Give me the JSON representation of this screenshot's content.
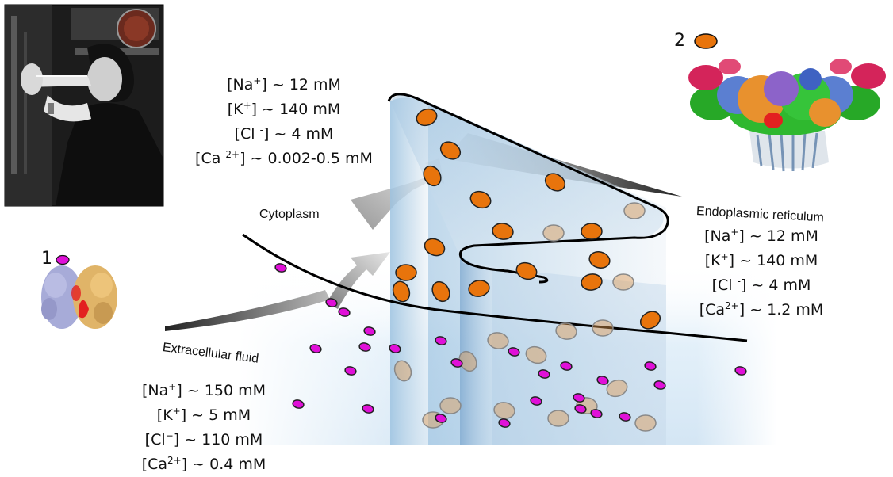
{
  "markers": {
    "one": "1",
    "two": "2"
  },
  "regions": {
    "cytoplasm": "Cytoplasm",
    "er": "Endoplasmic reticulum",
    "extracellular": "Extracellular fluid"
  },
  "cytoplasm_conc": {
    "na": {
      "pre": "[Na",
      "sup": "+",
      "post": "] ~ 12 mM"
    },
    "k": {
      "pre": "[K",
      "sup": "+",
      "post": "] ~ 140 mM"
    },
    "cl": {
      "pre": "[Cl ",
      "sup": "-",
      "post": "] ~ 4 mM"
    },
    "ca": {
      "pre": "[Ca ",
      "sup": "2+",
      "post": "] ~ 0.002-0.5 mM"
    }
  },
  "er_conc": {
    "na": {
      "pre": "[Na",
      "sup": "+",
      "post": "] ~ 12 mM"
    },
    "k": {
      "pre": "[K",
      "sup": "+",
      "post": "] ~ 140 mM"
    },
    "cl": {
      "pre": "[Cl ",
      "sup": "-",
      "post": "] ~ 4 mM"
    },
    "ca": {
      "pre": "[Ca",
      "sup": "2+",
      "post": "] ~ 1.2 mM"
    }
  },
  "extracellular_conc": {
    "na": {
      "pre": "[Na",
      "sup": "+",
      "post": "] ~ 150 mM"
    },
    "k": {
      "pre": "[K",
      "sup": "+",
      "post": "] ~ 5 mM"
    },
    "cl": {
      "pre": "[Cl",
      "sup": "−",
      "post": "] ~ 110 mM"
    },
    "ca": {
      "pre": "[Ca",
      "sup": "2+",
      "post": "] ~ 0.4 mM"
    }
  },
  "colors": {
    "orange_ion": "#e8740c",
    "magenta_ion": "#e010d8",
    "membrane_fill": "#8fb8da"
  }
}
